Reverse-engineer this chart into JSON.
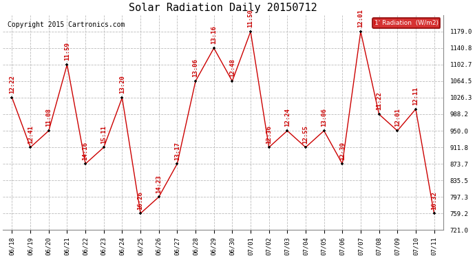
{
  "title": "Solar Radiation Daily 20150712",
  "copyright": "Copyright 2015 Cartronics.com",
  "legend_label": "1' Radiation  (W/m2)",
  "dates": [
    "06/18",
    "06/19",
    "06/20",
    "06/21",
    "06/22",
    "06/23",
    "06/24",
    "06/25",
    "06/26",
    "06/27",
    "06/28",
    "06/29",
    "06/30",
    "07/01",
    "07/02",
    "07/03",
    "07/04",
    "07/05",
    "07/06",
    "07/07",
    "07/08",
    "07/09",
    "07/10",
    "07/11"
  ],
  "values": [
    1026.3,
    911.8,
    950.0,
    1102.7,
    873.7,
    911.8,
    1026.3,
    759.2,
    797.3,
    873.7,
    1064.5,
    1140.8,
    1064.5,
    1179.0,
    911.8,
    950.0,
    911.8,
    950.0,
    873.7,
    1179.0,
    988.2,
    950.0,
    1000.0,
    759.2
  ],
  "time_labels": [
    "12:22",
    "12:41",
    "11:08",
    "11:59",
    "14:16",
    "15:11",
    "13:20",
    "16:26",
    "14:23",
    "13:17",
    "13:06",
    "13:16",
    "12:48",
    "11:50",
    "12:36",
    "12:24",
    "12:55",
    "13:06",
    "12:39",
    "12:01",
    "11:22",
    "12:01",
    "12:11",
    "16:32"
  ],
  "ylim_min": 721.0,
  "ylim_max": 1217.3,
  "yticks": [
    721.0,
    759.2,
    797.3,
    835.5,
    873.7,
    911.8,
    950.0,
    988.2,
    1026.3,
    1064.5,
    1102.7,
    1140.8,
    1179.0
  ],
  "line_color": "#cc0000",
  "marker_color": "black",
  "bg_color": "#ffffff",
  "grid_color": "#bbbbbb",
  "title_fontsize": 11,
  "copyright_fontsize": 7,
  "annotation_fontsize": 6.5
}
